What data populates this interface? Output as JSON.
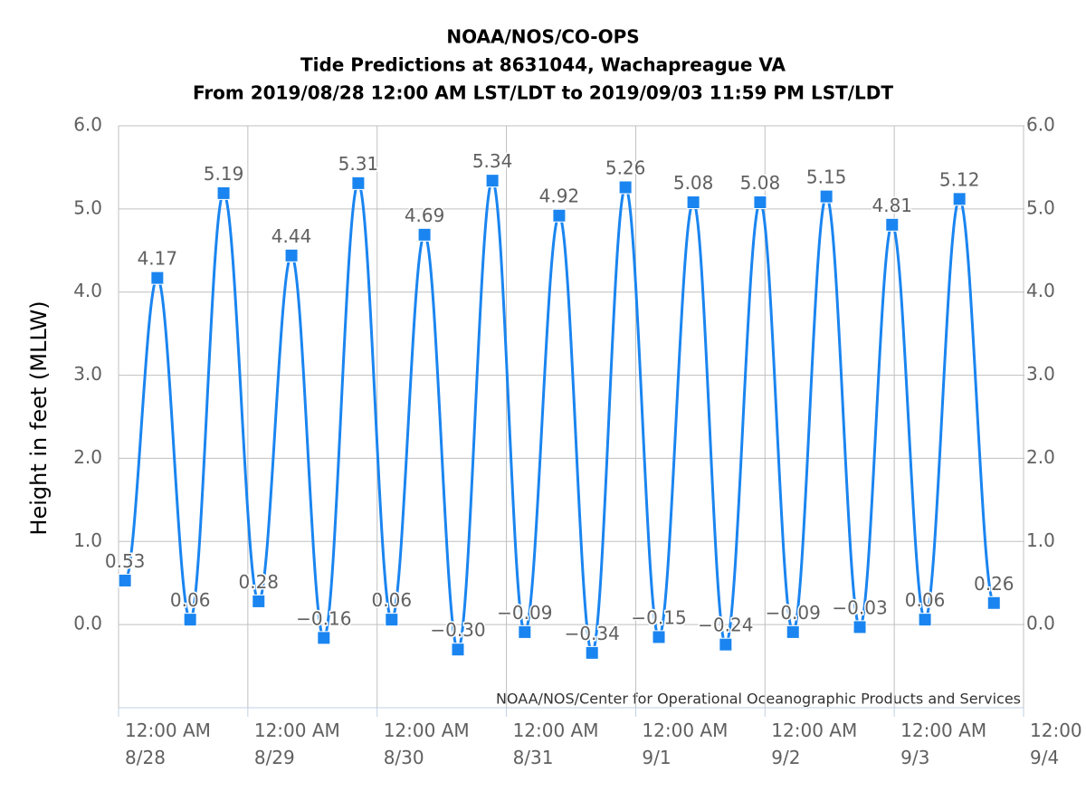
{
  "chart_data": {
    "type": "line",
    "title": "NOAA/NOS/CO-OPS",
    "subtitle": [
      "Tide Predictions at 8631044, Wachapreague VA",
      "From 2019/08/28 12:00 AM LST/LDT to 2019/09/03 11:59 PM LST/LDT"
    ],
    "y_label": "Height in feet (MLLW)",
    "credits": "NOAA/NOS/Center for Operational Oceanographic Products and Services",
    "color": "#1a85f0",
    "grid": true,
    "x": [
      1.2,
      7.2,
      13.3,
      19.5,
      26.0,
      32.1,
      38.1,
      44.5,
      50.7,
      56.8,
      63.0,
      69.4,
      75.4,
      81.8,
      87.9,
      94.1,
      100.3,
      106.7,
      112.7,
      119.1,
      125.2,
      131.4,
      137.6,
      143.6,
      149.7,
      156.1,
      162.5
    ],
    "values": [
      0.53,
      4.17,
      0.06,
      5.19,
      0.28,
      4.44,
      -0.16,
      5.31,
      0.06,
      4.69,
      -0.3,
      5.34,
      -0.09,
      4.92,
      -0.34,
      5.26,
      -0.15,
      5.08,
      -0.24,
      5.08,
      -0.09,
      5.15,
      -0.03,
      4.81,
      0.06,
      5.12,
      0.26
    ],
    "value_labels": [
      "0.53",
      "4.17",
      "0.06",
      "5.19",
      "0.28",
      "4.44",
      "−0.16",
      "5.31",
      "0.06",
      "4.69",
      "−0.30",
      "5.34",
      "−0.09",
      "4.92",
      "−0.34",
      "5.26",
      "−0.15",
      "5.08",
      "−0.24",
      "5.08",
      "−0.09",
      "5.15",
      "−0.03",
      "4.81",
      "0.06",
      "5.12",
      "0.26"
    ],
    "xlim": [
      0,
      168
    ],
    "xticks": [
      {
        "value": 0,
        "label": "12:00 AM\n8/28"
      },
      {
        "value": 24,
        "label": "12:00 AM\n8/29"
      },
      {
        "value": 48,
        "label": "12:00 AM\n8/30"
      },
      {
        "value": 72,
        "label": "12:00 AM\n8/31"
      },
      {
        "value": 96,
        "label": "12:00 AM\n9/1"
      },
      {
        "value": 120,
        "label": "12:00 AM\n9/2"
      },
      {
        "value": 144,
        "label": "12:00 AM\n9/3"
      },
      {
        "value": 168,
        "label": "12:00\n9/4"
      }
    ],
    "ylim": [
      -1,
      6
    ],
    "yticks": [
      {
        "value": 0,
        "label": "0.0"
      },
      {
        "value": 1,
        "label": "1.0"
      },
      {
        "value": 2,
        "label": "2.0"
      },
      {
        "value": 3,
        "label": "3.0"
      },
      {
        "value": 4,
        "label": "4.0"
      },
      {
        "value": 5,
        "label": "5.0"
      },
      {
        "value": 6,
        "label": "6.0"
      }
    ],
    "y2lim": [
      -1,
      6
    ],
    "y2ticks": [
      {
        "value": 0,
        "label": "0.0"
      },
      {
        "value": 1,
        "label": "1.0"
      },
      {
        "value": 2,
        "label": "2.0"
      },
      {
        "value": 3,
        "label": "3.0"
      },
      {
        "value": 4,
        "label": "4.0"
      },
      {
        "value": 5,
        "label": "5.0"
      },
      {
        "value": 6,
        "label": "6.0"
      }
    ]
  }
}
